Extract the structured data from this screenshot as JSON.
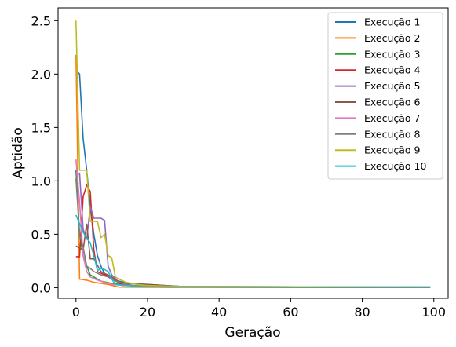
{
  "chart_data": {
    "type": "line",
    "title": "",
    "xlabel": "Geração",
    "ylabel": "Aptidão",
    "xlim": [
      -5,
      104
    ],
    "ylim": [
      -0.1,
      2.62
    ],
    "xticks": [
      0,
      20,
      40,
      60,
      80,
      100
    ],
    "yticks": [
      0.0,
      0.5,
      1.0,
      1.5,
      2.0,
      2.5
    ],
    "xtick_labels": [
      "0",
      "20",
      "40",
      "60",
      "80",
      "100"
    ],
    "ytick_labels": [
      "0.0",
      "0.5",
      "1.0",
      "1.5",
      "2.0",
      "2.5"
    ],
    "grid": false,
    "legend_position": "top-right",
    "series": [
      {
        "name": "Execução 1",
        "color": "#1f77b4",
        "points": [
          [
            0,
            2.04
          ],
          [
            1,
            2.0
          ],
          [
            2,
            1.4
          ],
          [
            3,
            1.1
          ],
          [
            4,
            0.75
          ],
          [
            5,
            0.5
          ],
          [
            6,
            0.3
          ],
          [
            7,
            0.2
          ],
          [
            8,
            0.13
          ],
          [
            9,
            0.1
          ],
          [
            10,
            0.08
          ],
          [
            12,
            0.06
          ],
          [
            15,
            0.04
          ],
          [
            20,
            0.02
          ],
          [
            30,
            0.01
          ],
          [
            50,
            0.005
          ],
          [
            99,
            0.003
          ]
        ]
      },
      {
        "name": "Execução 2",
        "color": "#ff7f0e",
        "points": [
          [
            0,
            2.18
          ],
          [
            1,
            0.08
          ],
          [
            3,
            0.07
          ],
          [
            5,
            0.05
          ],
          [
            7,
            0.04
          ],
          [
            9,
            0.03
          ],
          [
            12,
            0.005
          ],
          [
            20,
            0.003
          ],
          [
            99,
            0.002
          ]
        ]
      },
      {
        "name": "Execução 3",
        "color": "#2ca02c",
        "points": [
          [
            0,
            1.1
          ],
          [
            1,
            0.5
          ],
          [
            2,
            0.3
          ],
          [
            3,
            0.2
          ],
          [
            4,
            0.12
          ],
          [
            5,
            0.1
          ],
          [
            7,
            0.06
          ],
          [
            10,
            0.04
          ],
          [
            15,
            0.02
          ],
          [
            20,
            0.01
          ],
          [
            30,
            0.005
          ],
          [
            99,
            0.003
          ]
        ]
      },
      {
        "name": "Execução 4",
        "color": "#d62728",
        "points": [
          [
            0,
            0.29
          ],
          [
            1,
            0.29
          ],
          [
            2,
            0.85
          ],
          [
            3,
            0.96
          ],
          [
            4,
            0.9
          ],
          [
            5,
            0.35
          ],
          [
            6,
            0.15
          ],
          [
            8,
            0.12
          ],
          [
            10,
            0.1
          ],
          [
            12,
            0.04
          ],
          [
            15,
            0.02
          ],
          [
            20,
            0.01
          ],
          [
            30,
            0.005
          ],
          [
            99,
            0.003
          ]
        ]
      },
      {
        "name": "Execução 5",
        "color": "#9467bd",
        "points": [
          [
            0,
            1.05
          ],
          [
            1,
            1.07
          ],
          [
            2,
            0.55
          ],
          [
            3,
            0.45
          ],
          [
            4,
            0.76
          ],
          [
            5,
            0.65
          ],
          [
            7,
            0.65
          ],
          [
            8,
            0.63
          ],
          [
            9,
            0.2
          ],
          [
            10,
            0.12
          ],
          [
            12,
            0.05
          ],
          [
            15,
            0.04
          ],
          [
            20,
            0.03
          ],
          [
            30,
            0.01
          ],
          [
            99,
            0.005
          ]
        ]
      },
      {
        "name": "Execução 6",
        "color": "#8c564b",
        "points": [
          [
            0,
            0.39
          ],
          [
            1,
            0.37
          ],
          [
            2,
            0.35
          ],
          [
            3,
            0.6
          ],
          [
            4,
            0.27
          ],
          [
            5,
            0.27
          ],
          [
            7,
            0.15
          ],
          [
            10,
            0.1
          ],
          [
            12,
            0.05
          ],
          [
            15,
            0.04
          ],
          [
            20,
            0.03
          ],
          [
            30,
            0.01
          ],
          [
            99,
            0.005
          ]
        ]
      },
      {
        "name": "Execução 7",
        "color": "#e377c2",
        "points": [
          [
            0,
            1.2
          ],
          [
            1,
            0.8
          ],
          [
            2,
            0.3
          ],
          [
            3,
            0.15
          ],
          [
            4,
            0.1
          ],
          [
            6,
            0.07
          ],
          [
            8,
            0.05
          ],
          [
            10,
            0.03
          ],
          [
            15,
            0.02
          ],
          [
            20,
            0.01
          ],
          [
            99,
            0.005
          ]
        ]
      },
      {
        "name": "Execução 8",
        "color": "#7f7f7f",
        "points": [
          [
            0,
            1.02
          ],
          [
            1,
            0.5
          ],
          [
            2,
            0.38
          ],
          [
            3,
            0.2
          ],
          [
            4,
            0.18
          ],
          [
            5,
            0.15
          ],
          [
            7,
            0.12
          ],
          [
            9,
            0.1
          ],
          [
            11,
            0.06
          ],
          [
            13,
            0.04
          ],
          [
            16,
            0.02
          ],
          [
            20,
            0.015
          ],
          [
            30,
            0.01
          ],
          [
            99,
            0.005
          ]
        ]
      },
      {
        "name": "Execução 9",
        "color": "#bcbd22",
        "points": [
          [
            0,
            2.5
          ],
          [
            1,
            1.1
          ],
          [
            3,
            1.1
          ],
          [
            4,
            0.62
          ],
          [
            6,
            0.62
          ],
          [
            7,
            0.47
          ],
          [
            8,
            0.5
          ],
          [
            9,
            0.3
          ],
          [
            10,
            0.28
          ],
          [
            11,
            0.1
          ],
          [
            12,
            0.08
          ],
          [
            14,
            0.05
          ],
          [
            17,
            0.03
          ],
          [
            20,
            0.02
          ],
          [
            30,
            0.01
          ],
          [
            99,
            0.005
          ]
        ]
      },
      {
        "name": "Execução 10",
        "color": "#17becf",
        "points": [
          [
            0,
            0.68
          ],
          [
            1,
            0.6
          ],
          [
            2,
            0.52
          ],
          [
            3,
            0.46
          ],
          [
            4,
            0.42
          ],
          [
            5,
            0.3
          ],
          [
            6,
            0.16
          ],
          [
            7,
            0.18
          ],
          [
            8,
            0.17
          ],
          [
            9,
            0.15
          ],
          [
            10,
            0.08
          ],
          [
            11,
            0.03
          ],
          [
            13,
            0.02
          ],
          [
            20,
            0.01
          ],
          [
            30,
            0.005
          ],
          [
            99,
            0.003
          ]
        ]
      }
    ]
  }
}
